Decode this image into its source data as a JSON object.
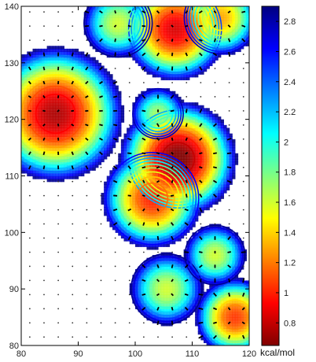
{
  "chart_data": {
    "type": "heatmap",
    "title": "",
    "xlabel": "",
    "ylabel": "",
    "xlim": [
      80,
      120
    ],
    "ylim": [
      80,
      140
    ],
    "x_ticks": [
      80,
      90,
      100,
      110,
      120
    ],
    "y_ticks": [
      80,
      90,
      100,
      110,
      120,
      130,
      140
    ],
    "grid": false,
    "legend": "none",
    "colorbar": {
      "unit_label": "kcal/mol",
      "range": [
        0.65,
        2.9
      ],
      "ticks": [
        0.8,
        1,
        1.2,
        1.4,
        1.6,
        1.8,
        2,
        2.2,
        2.4,
        2.6,
        2.8
      ],
      "colormap": [
        "#800000",
        "#ff0000",
        "#ff8000",
        "#ffff00",
        "#80ff80",
        "#00ffff",
        "#0080ff",
        "#0000ff",
        "#000080"
      ],
      "placement": "right"
    },
    "wells": [
      {
        "x": 86,
        "y": 121,
        "depth": 0.75,
        "radius": 3.8
      },
      {
        "x": 107,
        "y": 136,
        "depth": 0.85,
        "radius": 3.0
      },
      {
        "x": 97,
        "y": 137,
        "depth": 1.6,
        "radius": 2.5
      },
      {
        "x": 115,
        "y": 138,
        "depth": 1.3,
        "radius": 2.5
      },
      {
        "x": 107.5,
        "y": 113,
        "depth": 0.62,
        "radius": 3.2
      },
      {
        "x": 103,
        "y": 106,
        "depth": 1.0,
        "radius": 3.0
      },
      {
        "x": 105.5,
        "y": 90,
        "depth": 1.6,
        "radius": 2.6
      },
      {
        "x": 117.5,
        "y": 85,
        "depth": 1.05,
        "radius": 2.4
      },
      {
        "x": 114,
        "y": 96,
        "depth": 1.6,
        "radius": 2.2
      },
      {
        "x": 104,
        "y": 121,
        "depth": 1.7,
        "radius": 2.0
      }
    ]
  }
}
